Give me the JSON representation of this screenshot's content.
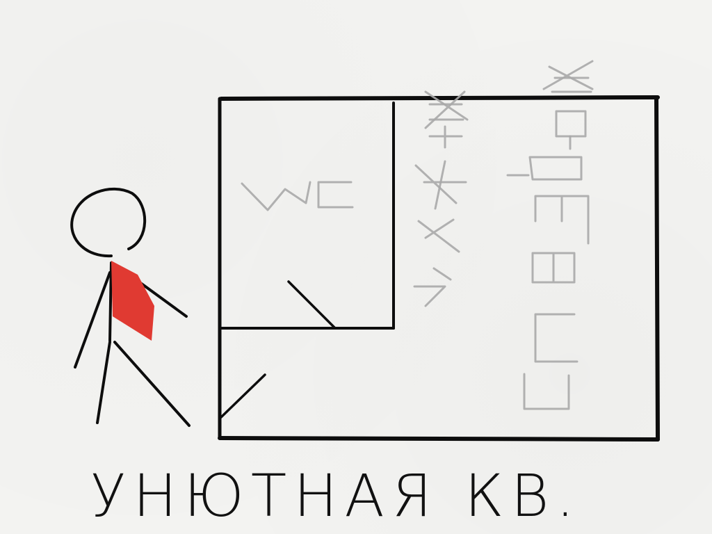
{
  "sketch": {
    "caption": "УНЮТНАЯ КВ.",
    "colors": {
      "ink": "#0d0d0d",
      "pencil": "#a9a9a9",
      "scarf": "#e03a32",
      "paper": "#f3f3f1"
    }
  }
}
